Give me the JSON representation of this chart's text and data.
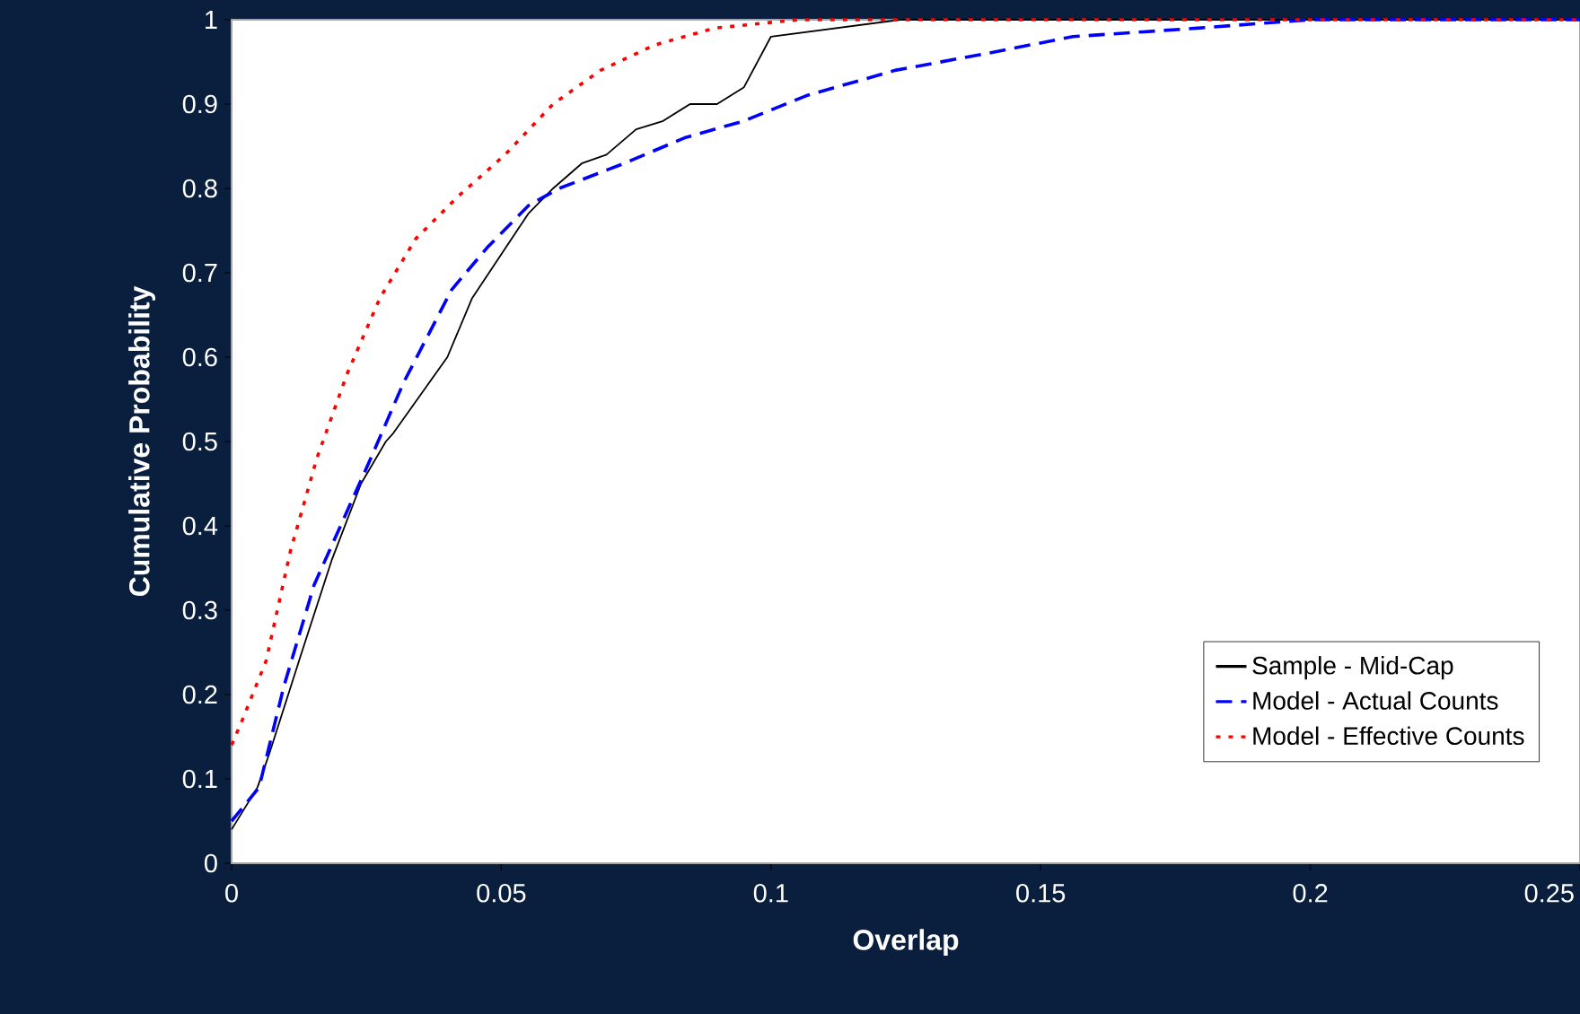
{
  "chart_data": {
    "type": "line",
    "xlabel": "Overlap",
    "ylabel": "Cumulative Probability",
    "xlim": [
      0,
      0.25
    ],
    "ylim": [
      0,
      1
    ],
    "xticks": [
      0,
      0.05,
      0.1,
      0.15,
      0.2,
      0.25
    ],
    "yticks": [
      0,
      0.1,
      0.2,
      0.3,
      0.4,
      0.5,
      0.6,
      0.7,
      0.8,
      0.9,
      1
    ],
    "grid": false,
    "legend": "bottom right",
    "marker": "none",
    "series": [
      {
        "name": "Sample - Mid-Cap",
        "color": "#000000",
        "line_style": "solid",
        "x": [
          0,
          0.0048,
          0.007,
          0.013,
          0.0186,
          0.024,
          0.0286,
          0.03,
          0.04,
          0.0446,
          0.055,
          0.0596,
          0.065,
          0.0695,
          0.075,
          0.08,
          0.085,
          0.09,
          0.095,
          0.1,
          0.124,
          0.25
        ],
        "values": [
          0.04,
          0.09,
          0.13,
          0.25,
          0.36,
          0.45,
          0.5,
          0.51,
          0.6,
          0.67,
          0.77,
          0.8,
          0.83,
          0.84,
          0.87,
          0.88,
          0.9,
          0.9,
          0.92,
          0.98,
          1,
          1
        ]
      },
      {
        "name": "Model - Actual Counts",
        "color": "#0000ff",
        "line_style": "dashed",
        "x": [
          0,
          0.0051,
          0.0097,
          0.0153,
          0.0258,
          0.0319,
          0.0408,
          0.0474,
          0.0551,
          0.0607,
          0.0729,
          0.084,
          0.095,
          0.1066,
          0.123,
          0.14,
          0.156,
          0.179,
          0.2,
          0.25
        ],
        "values": [
          0.05,
          0.09,
          0.21,
          0.33,
          0.48,
          0.57,
          0.68,
          0.73,
          0.78,
          0.8,
          0.83,
          0.86,
          0.88,
          0.91,
          0.94,
          0.96,
          0.98,
          0.99,
          1,
          1
        ]
      },
      {
        "name": "Model - Effective Counts",
        "color": "#ff0000",
        "line_style": "dotted",
        "x": [
          0,
          0.002,
          0.0064,
          0.0109,
          0.0158,
          0.0214,
          0.0275,
          0.0341,
          0.0419,
          0.0507,
          0.0596,
          0.0684,
          0.0784,
          0.0895,
          0.105,
          0.124,
          0.25
        ],
        "values": [
          0.14,
          0.17,
          0.24,
          0.37,
          0.48,
          0.58,
          0.67,
          0.74,
          0.79,
          0.84,
          0.9,
          0.94,
          0.97,
          0.99,
          1,
          1,
          1
        ]
      }
    ]
  }
}
